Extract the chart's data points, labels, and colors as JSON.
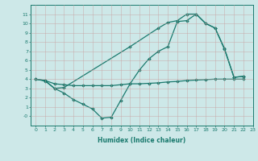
{
  "line1_x": [
    0,
    1,
    2,
    3,
    10,
    13,
    14,
    15,
    16,
    17,
    18,
    19,
    20,
    21,
    22
  ],
  "line1_y": [
    4.0,
    3.8,
    3.0,
    3.1,
    7.5,
    9.5,
    10.1,
    10.3,
    11.0,
    11.0,
    10.0,
    9.5,
    7.3,
    4.2,
    4.3
  ],
  "line2_x": [
    0,
    1,
    2,
    3,
    4,
    5,
    6,
    7,
    8,
    9,
    10,
    11,
    12,
    13,
    14,
    15,
    16,
    17,
    18,
    19,
    20,
    21,
    22
  ],
  "line2_y": [
    4.0,
    3.85,
    3.5,
    3.4,
    3.3,
    3.3,
    3.3,
    3.3,
    3.3,
    3.4,
    3.5,
    3.5,
    3.55,
    3.6,
    3.7,
    3.75,
    3.85,
    3.9,
    3.95,
    4.0,
    4.0,
    4.0,
    4.0
  ],
  "line3_x": [
    0,
    1,
    2,
    3,
    4,
    5,
    6,
    7,
    8,
    9,
    10,
    11,
    12,
    13,
    14,
    15,
    16,
    17,
    18,
    19,
    20,
    21,
    22
  ],
  "line3_y": [
    4.0,
    3.85,
    3.0,
    2.5,
    1.8,
    1.3,
    0.8,
    -0.2,
    -0.1,
    1.7,
    3.5,
    5.0,
    6.2,
    7.0,
    7.5,
    10.2,
    10.3,
    11.0,
    10.0,
    9.5,
    7.2,
    4.2,
    4.3
  ],
  "line_color": "#1a7a6e",
  "bg_color": "#cde8e8",
  "grid_color": "#b8d8d8",
  "xlabel": "Humidex (Indice chaleur)",
  "xlim": [
    -0.5,
    23
  ],
  "ylim": [
    -1,
    12
  ],
  "yticks": [
    0,
    1,
    2,
    3,
    4,
    5,
    6,
    7,
    8,
    9,
    10,
    11
  ],
  "ytick_labels": [
    "-0",
    "1",
    "2",
    "3",
    "4",
    "5",
    "6",
    "7",
    "8",
    "9",
    "10",
    "11"
  ],
  "xticks": [
    0,
    1,
    2,
    3,
    4,
    5,
    6,
    7,
    8,
    9,
    10,
    11,
    12,
    13,
    14,
    15,
    16,
    17,
    18,
    19,
    20,
    21,
    22,
    23
  ],
  "marker": "D",
  "markersize": 1.8,
  "linewidth": 0.9
}
